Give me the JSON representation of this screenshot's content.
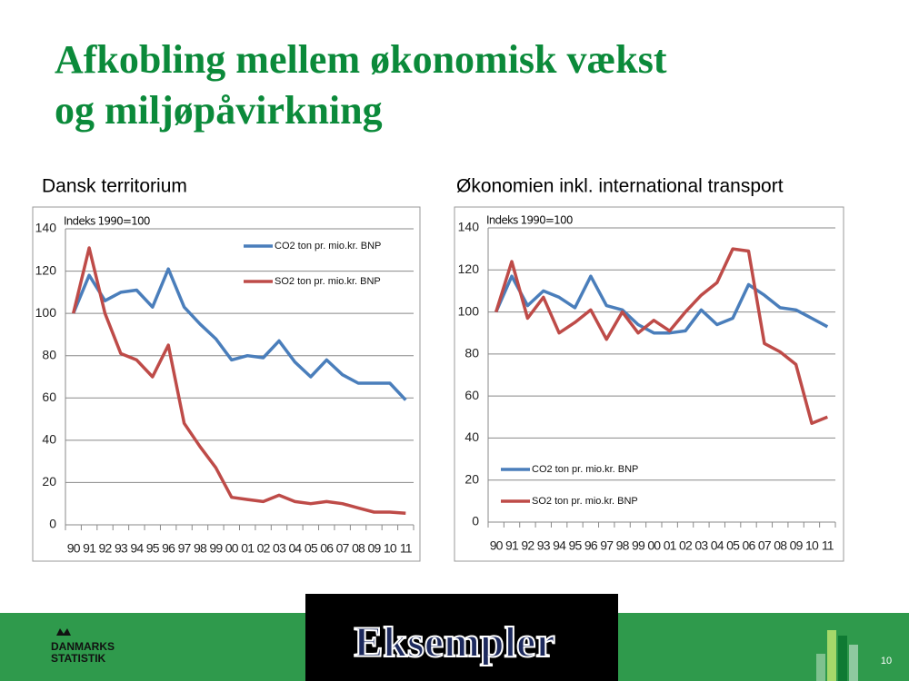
{
  "header": {
    "title_lines": [
      "Afkobling mellem økonomisk vækst",
      "og miljøpåvirkning"
    ]
  },
  "footer": {
    "banner": "Eksempler",
    "page_number": "10",
    "logo_lines": [
      "DANMARKS",
      "STATISTIK"
    ]
  },
  "chart_data": [
    {
      "type": "line",
      "title": "Dansk territorium",
      "annotation": "Indeks 1990=100",
      "categories": [
        "90",
        "91",
        "92",
        "93",
        "94",
        "95",
        "96",
        "97",
        "98",
        "99",
        "00",
        "01",
        "02",
        "03",
        "04",
        "05",
        "06",
        "07",
        "08",
        "09",
        "10",
        "11"
      ],
      "series": [
        {
          "name": "CO2 ton pr. mio.kr. BNP",
          "color": "#4a7ebb",
          "values": [
            100,
            118,
            106,
            110,
            111,
            103,
            121,
            103,
            95,
            88,
            78,
            80,
            79,
            87,
            77,
            70,
            78,
            71,
            67,
            67,
            67,
            59
          ]
        },
        {
          "name": "SO2 ton pr. mio.kr. BNP",
          "color": "#be4b48",
          "values": [
            100,
            131,
            100,
            81,
            78,
            70,
            85,
            48,
            37,
            27,
            13,
            12,
            11,
            14,
            11,
            10,
            11,
            10,
            8,
            6,
            6,
            5.5
          ]
        }
      ],
      "ylim": [
        0,
        140
      ],
      "yticks": [
        0,
        20,
        40,
        60,
        80,
        100,
        120,
        140
      ],
      "grid": true,
      "legend": "upper right"
    },
    {
      "type": "line",
      "title": "Økonomien inkl. international transport",
      "annotation": "Indeks 1990=100",
      "categories": [
        "90",
        "91",
        "92",
        "93",
        "94",
        "95",
        "96",
        "97",
        "98",
        "99",
        "00",
        "01",
        "02",
        "03",
        "04",
        "05",
        "06",
        "07",
        "08",
        "09",
        "10",
        "11"
      ],
      "series": [
        {
          "name": "CO2 ton pr. mio.kr. BNP",
          "color": "#4a7ebb",
          "values": [
            100,
            117,
            103,
            110,
            107,
            102,
            117,
            103,
            101,
            94,
            90,
            90,
            91,
            101,
            94,
            97,
            113,
            108,
            102,
            101,
            97,
            93
          ]
        },
        {
          "name": "SO2 ton pr. mio.kr. BNP",
          "color": "#be4b48",
          "values": [
            100,
            124,
            97,
            107,
            90,
            95,
            101,
            87,
            100,
            90,
            96,
            91,
            100,
            108,
            114,
            130,
            129,
            85,
            81,
            75,
            47,
            50
          ]
        }
      ],
      "ylim": [
        0,
        140
      ],
      "yticks": [
        0,
        20,
        40,
        60,
        80,
        100,
        120,
        140
      ],
      "grid": true,
      "legend": "lower left"
    }
  ]
}
